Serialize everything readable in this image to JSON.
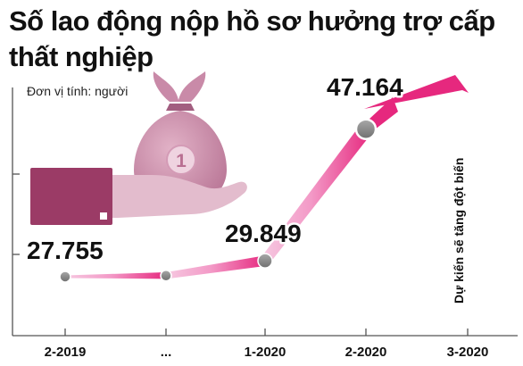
{
  "title_lines": [
    "Số lao động nộp hồ sơ hưởng trợ cấp",
    "thất nghiệp"
  ],
  "unit": "Đơn vị tính: người",
  "annotation": "Dự kiến sẽ tăng đột biến",
  "icon": "hand-holding-money-bag-icon",
  "colors": {
    "line_start": "#f6c9e1",
    "line_end": "#e6287e",
    "marker": "#8d8d8d",
    "bag": "#c98aa8",
    "hand": "#e3bccd",
    "cuff": "#9b3b66"
  },
  "chart_data": {
    "type": "line",
    "categories": [
      "2-2019",
      "...",
      "1-2020",
      "2-2020",
      "3-2020"
    ],
    "values": [
      27755,
      27900,
      29849,
      47164,
      null
    ],
    "data_labels": [
      "27.755",
      "",
      "29.849",
      "47.164",
      ""
    ],
    "ylim": [
      20000,
      53000
    ],
    "grid": false
  }
}
